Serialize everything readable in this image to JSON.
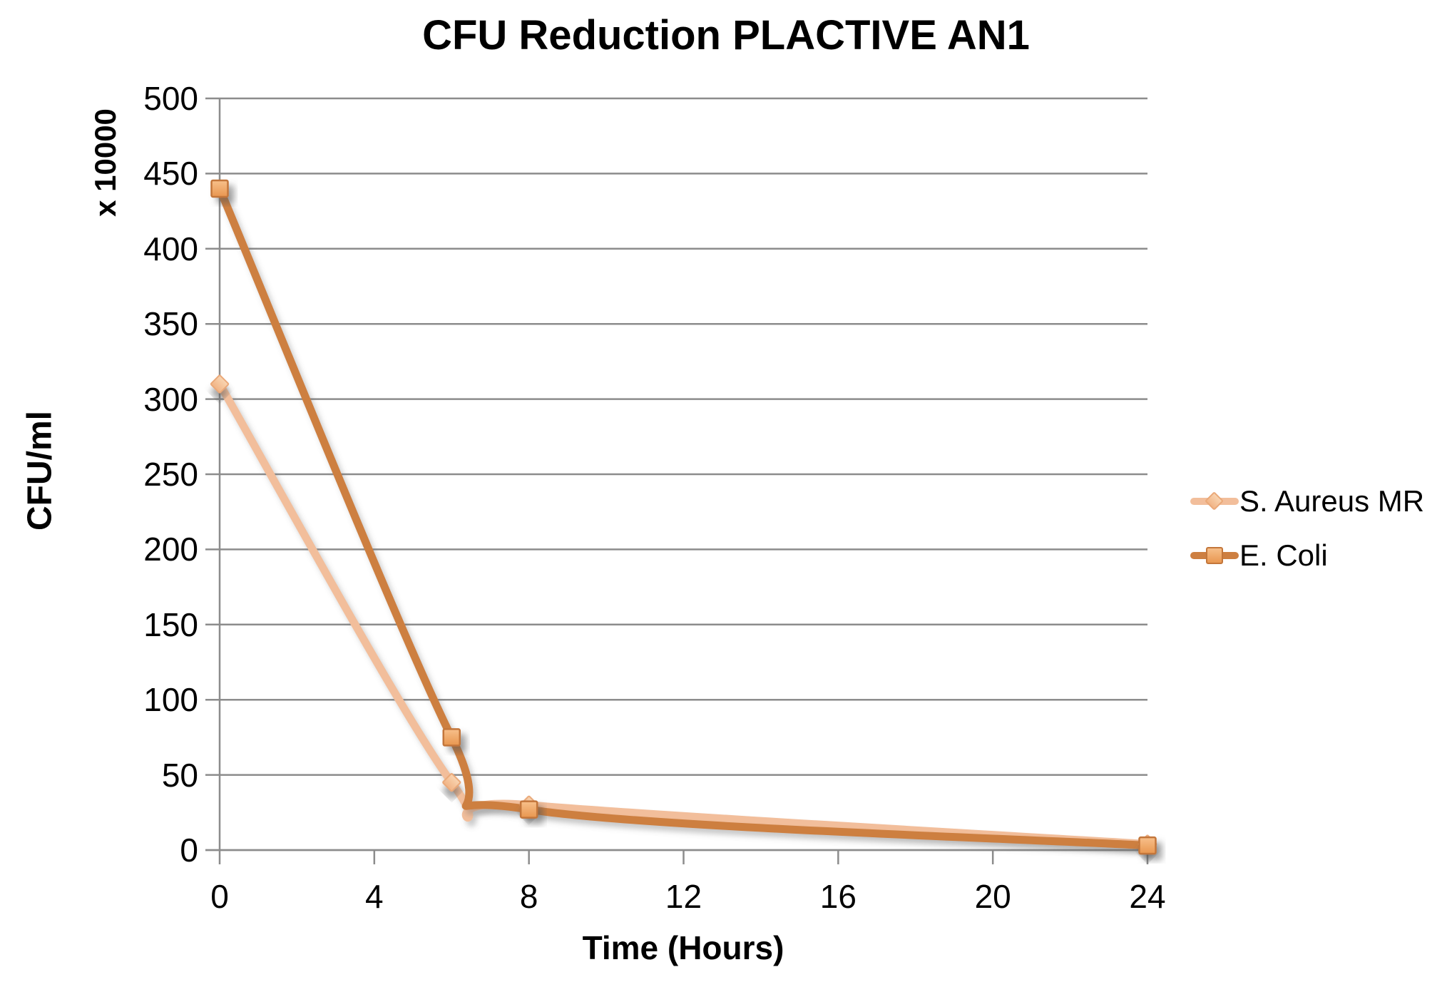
{
  "title": "CFU Reduction PLACTIVE AN1",
  "chart_data": {
    "type": "line",
    "title": "CFU Reduction PLACTIVE AN1",
    "xlabel": "Time (Hours)",
    "ylabel": "CFU/ml",
    "ylabel_secondary": "x 10000",
    "xlim": [
      0,
      24
    ],
    "ylim": [
      0,
      500
    ],
    "x_ticks": [
      0,
      4,
      8,
      12,
      16,
      20,
      24
    ],
    "y_ticks": [
      0,
      50,
      100,
      150,
      200,
      250,
      300,
      350,
      400,
      450,
      500
    ],
    "grid": "horizontal",
    "legend_position": "right",
    "line_smoothing": true,
    "axis_color": "#8C8C8C",
    "gridline_color": "#8C8C8C",
    "series": [
      {
        "name": "S. Aureus MR",
        "marker": "diamond",
        "line_color": "#F2BE9B",
        "marker_fill_light": "#F9D5B2",
        "marker_fill_dark": "#F1B384",
        "marker_stroke": "#EAA878",
        "x": [
          0,
          6,
          8,
          24
        ],
        "values": [
          310,
          45,
          30,
          4
        ]
      },
      {
        "name": "E. Coli",
        "marker": "square",
        "line_color": "#CD7F41",
        "marker_fill_light": "#F7C08B",
        "marker_fill_dark": "#E8964F",
        "marker_stroke": "#C3763A",
        "x": [
          0,
          6,
          8,
          24
        ],
        "values": [
          440,
          75,
          27,
          3
        ]
      }
    ]
  }
}
